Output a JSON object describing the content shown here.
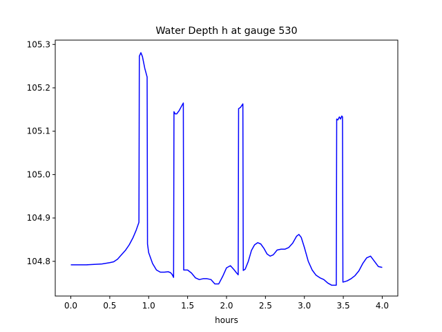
{
  "chart_data": {
    "type": "line",
    "title": "Water Depth h at gauge 530",
    "xlabel": "hours",
    "ylabel": "",
    "xlim": [
      -0.2,
      4.2
    ],
    "ylim": [
      104.72,
      105.31
    ],
    "xticks": [
      0.0,
      0.5,
      1.0,
      1.5,
      2.0,
      2.5,
      3.0,
      3.5,
      4.0
    ],
    "xtick_labels": [
      "0.0",
      "0.5",
      "1.0",
      "1.5",
      "2.0",
      "2.5",
      "3.0",
      "3.5",
      "4.0"
    ],
    "yticks": [
      104.8,
      104.9,
      105.0,
      105.1,
      105.2,
      105.3
    ],
    "ytick_labels": [
      "104.8",
      "104.9",
      "105.0",
      "105.1",
      "105.2",
      "105.3"
    ],
    "grid": false,
    "series": [
      {
        "color": "#0000ff",
        "points": [
          [
            0.0,
            104.792
          ],
          [
            0.1,
            104.792
          ],
          [
            0.2,
            104.792
          ],
          [
            0.3,
            104.793
          ],
          [
            0.4,
            104.794
          ],
          [
            0.5,
            104.797
          ],
          [
            0.55,
            104.799
          ],
          [
            0.6,
            104.805
          ],
          [
            0.65,
            104.815
          ],
          [
            0.7,
            104.825
          ],
          [
            0.75,
            104.838
          ],
          [
            0.8,
            104.855
          ],
          [
            0.84,
            104.872
          ],
          [
            0.875,
            104.89
          ],
          [
            0.88,
            105.273
          ],
          [
            0.9,
            105.281
          ],
          [
            0.92,
            105.272
          ],
          [
            0.95,
            105.245
          ],
          [
            0.98,
            105.225
          ],
          [
            0.985,
            104.84
          ],
          [
            1.0,
            104.82
          ],
          [
            1.05,
            104.795
          ],
          [
            1.1,
            104.78
          ],
          [
            1.15,
            104.775
          ],
          [
            1.2,
            104.775
          ],
          [
            1.25,
            104.776
          ],
          [
            1.28,
            104.774
          ],
          [
            1.3,
            104.77
          ],
          [
            1.32,
            104.763
          ],
          [
            1.325,
            105.145
          ],
          [
            1.34,
            105.14
          ],
          [
            1.36,
            105.14
          ],
          [
            1.39,
            105.147
          ],
          [
            1.42,
            105.157
          ],
          [
            1.445,
            105.165
          ],
          [
            1.45,
            104.78
          ],
          [
            1.5,
            104.78
          ],
          [
            1.55,
            104.773
          ],
          [
            1.6,
            104.762
          ],
          [
            1.65,
            104.758
          ],
          [
            1.7,
            104.76
          ],
          [
            1.75,
            104.76
          ],
          [
            1.8,
            104.758
          ],
          [
            1.85,
            104.748
          ],
          [
            1.9,
            104.748
          ],
          [
            1.95,
            104.765
          ],
          [
            2.0,
            104.785
          ],
          [
            2.05,
            104.79
          ],
          [
            2.1,
            104.78
          ],
          [
            2.13,
            104.773
          ],
          [
            2.15,
            104.769
          ],
          [
            2.155,
            105.152
          ],
          [
            2.18,
            105.155
          ],
          [
            2.21,
            105.163
          ],
          [
            2.215,
            104.779
          ],
          [
            2.24,
            104.782
          ],
          [
            2.28,
            104.8
          ],
          [
            2.32,
            104.825
          ],
          [
            2.36,
            104.838
          ],
          [
            2.4,
            104.843
          ],
          [
            2.44,
            104.84
          ],
          [
            2.48,
            104.83
          ],
          [
            2.52,
            104.817
          ],
          [
            2.56,
            104.812
          ],
          [
            2.6,
            104.815
          ],
          [
            2.65,
            104.826
          ],
          [
            2.7,
            104.828
          ],
          [
            2.75,
            104.828
          ],
          [
            2.8,
            104.832
          ],
          [
            2.85,
            104.842
          ],
          [
            2.9,
            104.858
          ],
          [
            2.93,
            104.862
          ],
          [
            2.96,
            104.855
          ],
          [
            3.0,
            104.832
          ],
          [
            3.05,
            104.8
          ],
          [
            3.1,
            104.78
          ],
          [
            3.15,
            104.768
          ],
          [
            3.2,
            104.762
          ],
          [
            3.25,
            104.758
          ],
          [
            3.3,
            104.75
          ],
          [
            3.35,
            104.745
          ],
          [
            3.4,
            104.745
          ],
          [
            3.41,
            104.745
          ],
          [
            3.415,
            105.128
          ],
          [
            3.43,
            105.126
          ],
          [
            3.45,
            105.133
          ],
          [
            3.465,
            105.128
          ],
          [
            3.48,
            105.135
          ],
          [
            3.49,
            105.133
          ],
          [
            3.495,
            104.752
          ],
          [
            3.55,
            104.755
          ],
          [
            3.6,
            104.76
          ],
          [
            3.65,
            104.767
          ],
          [
            3.7,
            104.778
          ],
          [
            3.75,
            104.795
          ],
          [
            3.8,
            104.808
          ],
          [
            3.85,
            104.812
          ],
          [
            3.9,
            104.8
          ],
          [
            3.95,
            104.788
          ],
          [
            4.0,
            104.786
          ]
        ]
      }
    ]
  }
}
